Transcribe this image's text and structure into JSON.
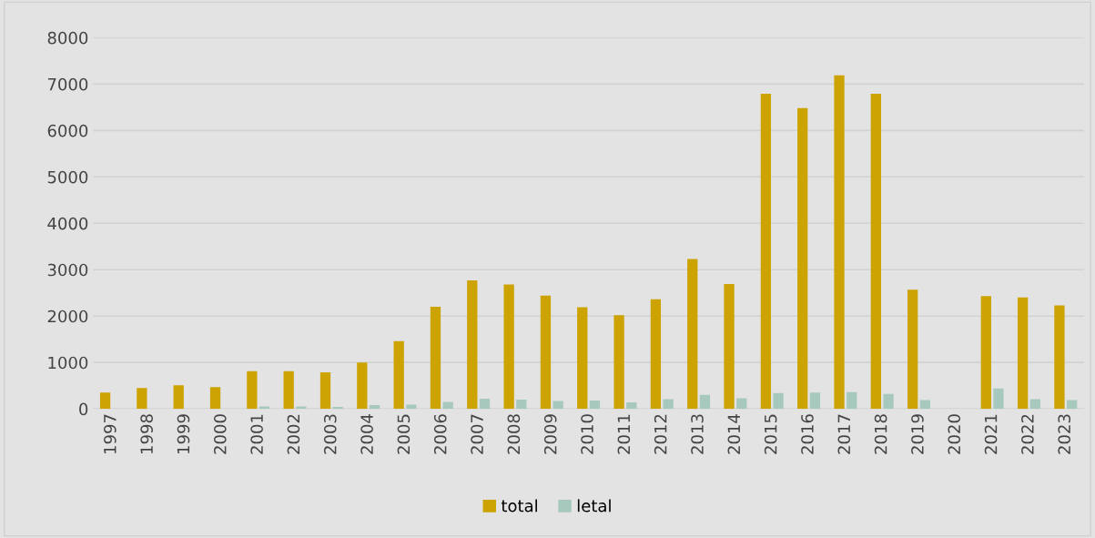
{
  "chart_data": {
    "type": "bar",
    "categories": [
      "1997",
      "1998",
      "1999",
      "2000",
      "2001",
      "2002",
      "2003",
      "2004",
      "2005",
      "2006",
      "2007",
      "2008",
      "2009",
      "2010",
      "2011",
      "2012",
      "2013",
      "2014",
      "2015",
      "2016",
      "2017",
      "2018",
      "2019",
      "2020",
      "2021",
      "2022",
      "2023"
    ],
    "series": [
      {
        "name": "total",
        "color": "#cca300",
        "values": [
          350,
          450,
          510,
          470,
          810,
          810,
          790,
          1000,
          1460,
          2200,
          2770,
          2680,
          2440,
          2190,
          2020,
          2360,
          3230,
          2690,
          6790,
          6480,
          7190,
          6790,
          2570,
          null,
          2430,
          2400,
          2230
        ]
      },
      {
        "name": "letal",
        "color": "#a7c9bd",
        "values": [
          0,
          0,
          0,
          0,
          50,
          50,
          40,
          80,
          90,
          150,
          220,
          200,
          170,
          180,
          140,
          210,
          300,
          230,
          340,
          350,
          360,
          320,
          190,
          null,
          440,
          210,
          190
        ]
      }
    ],
    "ylim": [
      0,
      8000
    ],
    "yticks": [
      0,
      1000,
      2000,
      3000,
      4000,
      5000,
      6000,
      7000,
      8000
    ],
    "grid": "y",
    "legend": "bottom"
  }
}
